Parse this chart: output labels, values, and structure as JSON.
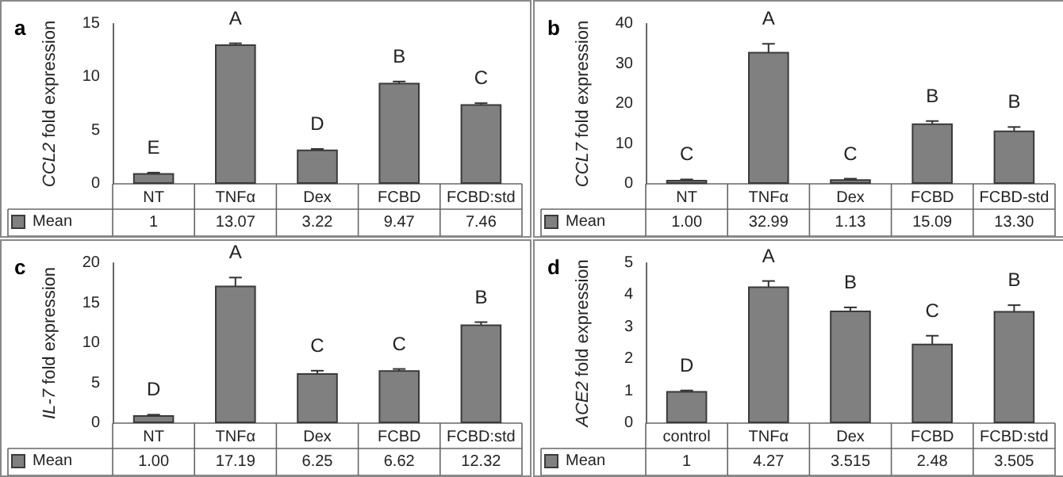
{
  "chart_data": [
    {
      "type": "bar",
      "title": "a",
      "ylabel": "CCL2 fold expression",
      "categories": [
        "NT",
        "TNFα",
        "Dex",
        "FCBD",
        "FCBD:std"
      ],
      "series": [
        {
          "name": "Mean",
          "color": "#808080",
          "values": [
            1,
            13.07,
            3.22,
            9.47,
            7.46
          ],
          "errors": [
            0.05,
            0.1,
            0.05,
            0.12,
            0.1
          ],
          "value_labels": [
            "1",
            "13.07",
            "3.22",
            "9.47",
            "7.46"
          ]
        }
      ],
      "ylim": [
        0,
        15
      ],
      "yticks": [
        0,
        5,
        10,
        15
      ],
      "grid": false,
      "legend": "bottom left",
      "annotations": [
        "E",
        "A",
        "D",
        "B",
        "C"
      ]
    },
    {
      "type": "bar",
      "title": "b",
      "ylabel": "CCL7 fold expression",
      "categories": [
        "NT",
        "TNFα",
        "Dex",
        "FCBD",
        "FCBD-std"
      ],
      "series": [
        {
          "name": "Mean",
          "color": "#808080",
          "values": [
            1.0,
            32.99,
            1.13,
            15.09,
            13.3
          ],
          "errors": [
            0.1,
            2,
            0.15,
            0.6,
            0.9
          ],
          "value_labels": [
            "1.00",
            "32.99",
            "1.13",
            "15.09",
            "13.30"
          ]
        }
      ],
      "ylim": [
        0,
        40
      ],
      "yticks": [
        0,
        10,
        20,
        30,
        40
      ],
      "grid": false,
      "legend": "bottom left",
      "annotations": [
        "C",
        "A",
        "C",
        "B",
        "B"
      ]
    },
    {
      "type": "bar",
      "title": "c",
      "ylabel": "IL-7 fold expression",
      "categories": [
        "NT",
        "TNFα",
        "Dex",
        "FCBD",
        "FCBD:std"
      ],
      "series": [
        {
          "name": "Mean",
          "color": "#808080",
          "values": [
            1.0,
            17.19,
            6.25,
            6.62,
            12.32
          ],
          "errors": [
            0.05,
            1,
            0.3,
            0.15,
            0.3
          ],
          "value_labels": [
            "1.00",
            "17.19",
            "6.25",
            "6.62",
            "12.32"
          ]
        }
      ],
      "ylim": [
        0,
        20
      ],
      "yticks": [
        0,
        5,
        10,
        15,
        20
      ],
      "grid": false,
      "legend": "bottom left",
      "annotations": [
        "D",
        "A",
        "C",
        "C",
        "B"
      ]
    },
    {
      "type": "bar",
      "title": "d",
      "ylabel": "ACE2 fold expression",
      "categories": [
        "control",
        "TNFα",
        "Dex",
        "FCBD",
        "FCBD:std"
      ],
      "series": [
        {
          "name": "Mean",
          "color": "#808080",
          "values": [
            1,
            4.27,
            3.515,
            2.48,
            3.505
          ],
          "errors": [
            0.02,
            0.17,
            0.1,
            0.25,
            0.18
          ],
          "value_labels": [
            "1",
            "4.27",
            "3.515",
            "2.48",
            "3.505"
          ]
        }
      ],
      "ylim": [
        0,
        5
      ],
      "yticks": [
        0,
        1,
        2,
        3,
        4,
        5
      ],
      "grid": false,
      "legend": "bottom left",
      "annotations": [
        "D",
        "A",
        "B",
        "C",
        "B"
      ]
    }
  ]
}
